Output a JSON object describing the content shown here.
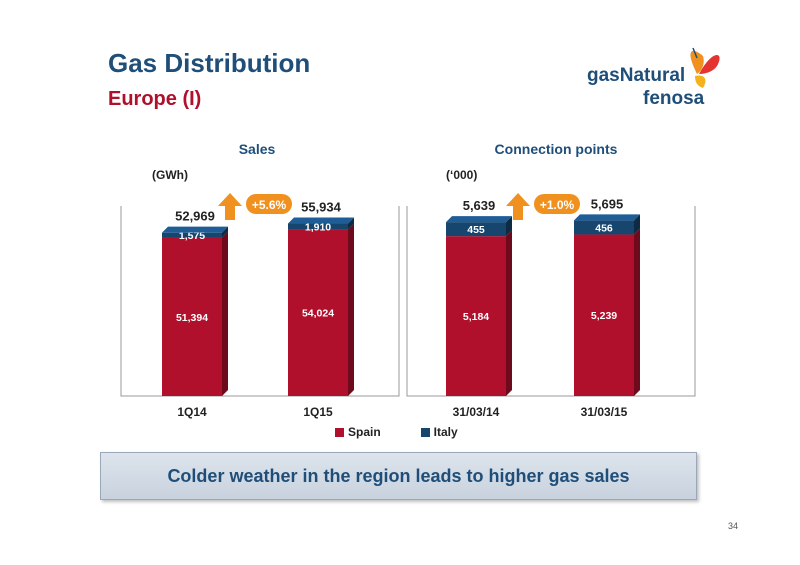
{
  "header": {
    "title": "Gas Distribution",
    "subtitle": "Europe (I)"
  },
  "logo": {
    "line1": "gasNatural",
    "line2": "fenosa"
  },
  "chart_data": [
    {
      "type": "bar",
      "stacked": true,
      "title": "Sales",
      "unit": "(GWh)",
      "categories": [
        "1Q14",
        "1Q15"
      ],
      "series": [
        {
          "name": "Spain",
          "values": [
            51394,
            54024
          ],
          "labels": [
            "51,394",
            "54,024"
          ]
        },
        {
          "name": "Italy",
          "values": [
            1575,
            1910
          ],
          "labels": [
            "1,575",
            "1,910"
          ]
        }
      ],
      "totals": [
        "52,969",
        "55,934"
      ],
      "ylim": [
        0,
        60000
      ],
      "growth": "+5.6%"
    },
    {
      "type": "bar",
      "stacked": true,
      "title": "Connection points",
      "unit": "(‘000)",
      "categories": [
        "31/03/14",
        "31/03/15"
      ],
      "series": [
        {
          "name": "Spain",
          "values": [
            5184,
            5239
          ],
          "labels": [
            "5,184",
            "5,239"
          ]
        },
        {
          "name": "Italy",
          "values": [
            455,
            456
          ],
          "labels": [
            "455",
            "456"
          ]
        }
      ],
      "totals": [
        "5,639",
        "5,695"
      ],
      "ylim": [
        0,
        6000
      ],
      "growth": "+1.0%"
    }
  ],
  "legend": [
    {
      "name": "Spain",
      "color": "#b0102c"
    },
    {
      "name": "Italy",
      "color": "#16456e"
    }
  ],
  "colors": {
    "spain": "#b0102c",
    "italy": "#16456e",
    "accent": "#f0901e",
    "title": "#1f4e79"
  },
  "banner": "Colder weather in the region leads to higher gas sales",
  "page_number": "34"
}
